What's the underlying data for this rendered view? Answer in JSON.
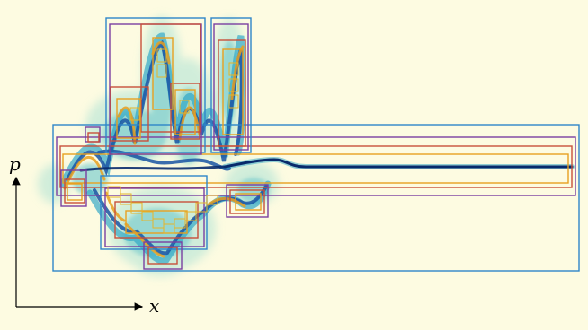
{
  "figure": {
    "axis_labels": {
      "horizontal": "x",
      "vertical": "p"
    },
    "colors": {
      "background": "#fdfbe1",
      "cloud_light": "#c9ebd9",
      "cloud_mid": "#7fcfcf",
      "cloud_teal": "#2aa4c6",
      "cloud_deep": "#1a55a4",
      "cloud_core": "#082a6b",
      "box_blue": "#2e86c8",
      "box_purple": "#7a3fa0",
      "box_red": "#c8503a",
      "box_orange": "#e8a020",
      "box_gold": "#e6b52a",
      "axes": "#000000"
    }
  }
}
